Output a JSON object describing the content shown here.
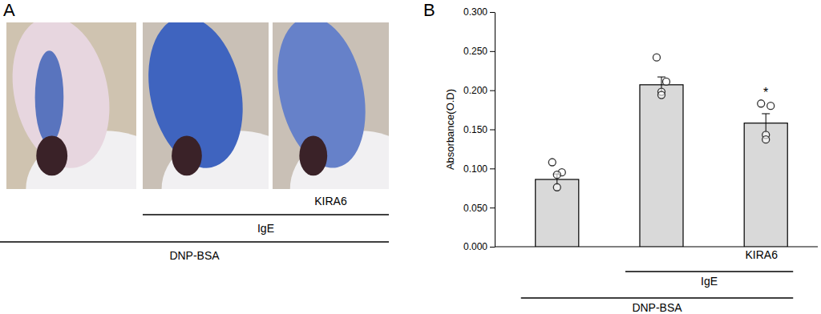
{
  "panel_a": {
    "label": "A",
    "conditions": [
      {
        "label": "KIRA6",
        "present": [
          false,
          false,
          true
        ]
      },
      {
        "label": "IgE",
        "present": [
          false,
          true,
          true
        ]
      },
      {
        "label": "DNP-BSA",
        "present": [
          true,
          true,
          true
        ]
      }
    ]
  },
  "chart_data": {
    "type": "bar",
    "panel_label": "B",
    "y_label": "Absorbance(O.D)",
    "categories": [
      null,
      null,
      null
    ],
    "values": [
      0.086,
      0.207,
      0.158
    ],
    "errors": [
      0.007,
      0.01,
      0.012
    ],
    "points": [
      [
        0.108,
        0.095,
        0.092,
        0.076
      ],
      [
        0.242,
        0.211,
        0.198,
        0.194
      ],
      [
        0.183,
        0.18,
        0.143,
        0.137
      ]
    ],
    "color": "#d9d9d9",
    "ylim": [
      0,
      0.3
    ],
    "yticks": [
      {
        "value": 0,
        "label": "0.000"
      },
      {
        "value": 0.05,
        "label": "0.050"
      },
      {
        "value": 0.1,
        "label": "0.100"
      },
      {
        "value": 0.15,
        "label": "0.150"
      },
      {
        "value": 0.2,
        "label": "0.200"
      },
      {
        "value": 0.25,
        "label": "0.250"
      },
      {
        "value": 0.3,
        "label": "0.300"
      }
    ],
    "significance": [
      null,
      null,
      "*"
    ],
    "conditions": [
      {
        "label": "KIRA6",
        "present": [
          false,
          false,
          true
        ]
      },
      {
        "label": "IgE",
        "present": [
          false,
          true,
          true
        ]
      },
      {
        "label": "DNP-BSA",
        "present": [
          true,
          true,
          true
        ]
      }
    ]
  }
}
